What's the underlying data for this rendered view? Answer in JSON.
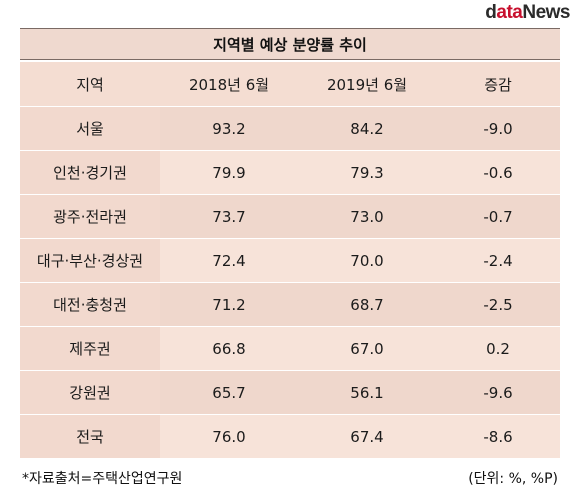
{
  "logo": {
    "part1": "d",
    "part2": "ata",
    "part3": "News"
  },
  "title": "지역별 예상 분양률 추이",
  "table": {
    "headers": [
      "지역",
      "2018년 6월",
      "2019년 6월",
      "증감"
    ],
    "rows": [
      [
        "서울",
        "93.2",
        "84.2",
        "-9.0"
      ],
      [
        "인천·경기권",
        "79.9",
        "79.3",
        "-0.6"
      ],
      [
        "광주·전라권",
        "73.7",
        "73.0",
        "-0.7"
      ],
      [
        "대구·부산·경상권",
        "72.4",
        "70.0",
        "-2.4"
      ],
      [
        "대전·충청권",
        "71.2",
        "68.7",
        "-2.5"
      ],
      [
        "제주권",
        "66.8",
        "67.0",
        "0.2"
      ],
      [
        "강원권",
        "65.7",
        "56.1",
        "-9.6"
      ],
      [
        "전국",
        "76.0",
        "67.4",
        "-8.6"
      ]
    ]
  },
  "footer": {
    "source": "*자료출처=주택산업연구원",
    "unit": "(단위: %, %P)"
  },
  "colors": {
    "title_bg": "#efd9cf",
    "row_light": "#f7e3d9",
    "row_dark": "#efd7cc",
    "logo_accent": "#c8102e"
  }
}
